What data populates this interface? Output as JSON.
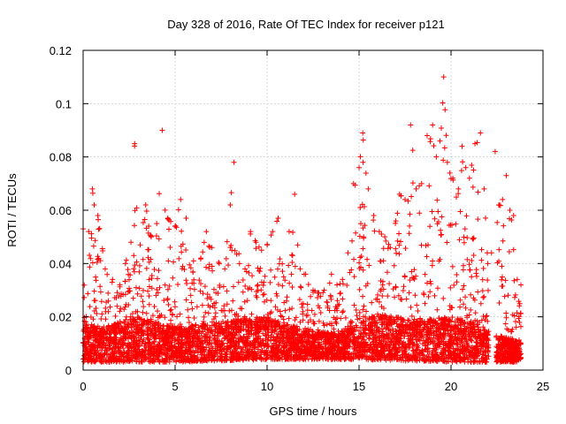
{
  "chart_data": {
    "type": "scatter",
    "title": "Day 328 of 2016, Rate Of TEC Index for receiver p121",
    "xlabel": "GPS time / hours",
    "ylabel": "ROTI / TECUs",
    "xlim": [
      0,
      25
    ],
    "ylim": [
      0,
      0.12
    ],
    "grid": true,
    "marker": "+",
    "color": "#ff0000",
    "xticks": [
      0,
      5,
      10,
      15,
      20,
      25
    ],
    "xtick_labels": [
      "0",
      "5",
      "10",
      "15",
      "20",
      "25"
    ],
    "yticks": [
      0,
      0.02,
      0.04,
      0.06,
      0.08,
      0.1,
      0.12
    ],
    "ytick_labels": [
      "0",
      "0.02",
      "0.04",
      "0.06",
      "0.08",
      "0.1",
      "0.12"
    ],
    "series": [
      {
        "name": "ROTI",
        "upper_envelope": {
          "x": [
            0.0,
            0.3,
            0.5,
            0.6,
            0.8,
            1.2,
            1.6,
            2.0,
            2.3,
            2.6,
            2.8,
            3.1,
            3.4,
            3.7,
            4.0,
            4.3,
            4.6,
            5.0,
            5.3,
            5.6,
            6.0,
            6.4,
            6.7,
            7.0,
            7.4,
            7.7,
            8.0,
            8.2,
            8.5,
            8.8,
            9.1,
            9.4,
            9.7,
            10.0,
            10.3,
            10.6,
            10.9,
            11.2,
            11.5,
            11.8,
            12.1,
            12.5,
            12.8,
            13.1,
            13.5,
            13.8,
            14.1,
            14.4,
            14.7,
            15.0,
            15.2,
            15.5,
            15.8,
            16.1,
            16.4,
            16.7,
            17.0,
            17.2,
            17.5,
            17.8,
            18.1,
            18.4,
            18.7,
            19.0,
            19.2,
            19.4,
            19.6,
            19.8,
            20.1,
            20.4,
            20.6,
            20.8,
            21.0,
            21.3,
            21.6,
            21.8,
            22.0,
            22.2,
            22.4,
            22.6,
            22.8,
            23.0,
            23.2,
            23.4,
            23.6,
            23.8
          ],
          "y": [
            0.053,
            0.052,
            0.068,
            0.062,
            0.058,
            0.038,
            0.034,
            0.032,
            0.04,
            0.048,
            0.085,
            0.047,
            0.062,
            0.05,
            0.055,
            0.09,
            0.057,
            0.054,
            0.064,
            0.057,
            0.041,
            0.042,
            0.052,
            0.046,
            0.04,
            0.038,
            0.062,
            0.078,
            0.04,
            0.038,
            0.052,
            0.048,
            0.045,
            0.047,
            0.052,
            0.057,
            0.035,
            0.052,
            0.066,
            0.038,
            0.036,
            0.03,
            0.029,
            0.03,
            0.036,
            0.032,
            0.034,
            0.044,
            0.07,
            0.076,
            0.089,
            0.068,
            0.058,
            0.052,
            0.05,
            0.046,
            0.056,
            0.066,
            0.064,
            0.092,
            0.068,
            0.07,
            0.088,
            0.092,
            0.08,
            0.086,
            0.11,
            0.078,
            0.072,
            0.068,
            0.084,
            0.076,
            0.072,
            0.085,
            0.089,
            0.068,
            0.04,
            0.044,
            0.082,
            0.062,
            0.064,
            0.073,
            0.06,
            0.058,
            0.034,
            0.032
          ]
        },
        "lower_envelope": {
          "x": [
            0.0,
            5.0,
            10.0,
            15.0,
            20.0,
            22.0,
            23.8
          ],
          "y": [
            0.003,
            0.003,
            0.004,
            0.004,
            0.003,
            0.003,
            0.003
          ]
        },
        "typical_core": {
          "x": [
            0.0,
            1.0,
            3.0,
            5.0,
            8.0,
            10.0,
            12.0,
            14.0,
            16.0,
            18.0,
            20.0,
            21.5,
            22.0,
            23.0,
            23.8
          ],
          "y": [
            0.014,
            0.013,
            0.016,
            0.013,
            0.015,
            0.016,
            0.012,
            0.011,
            0.017,
            0.015,
            0.016,
            0.014,
            0.011,
            0.01,
            0.009
          ]
        },
        "data_gap_hours": [
          22.05,
          22.45
        ]
      }
    ]
  }
}
